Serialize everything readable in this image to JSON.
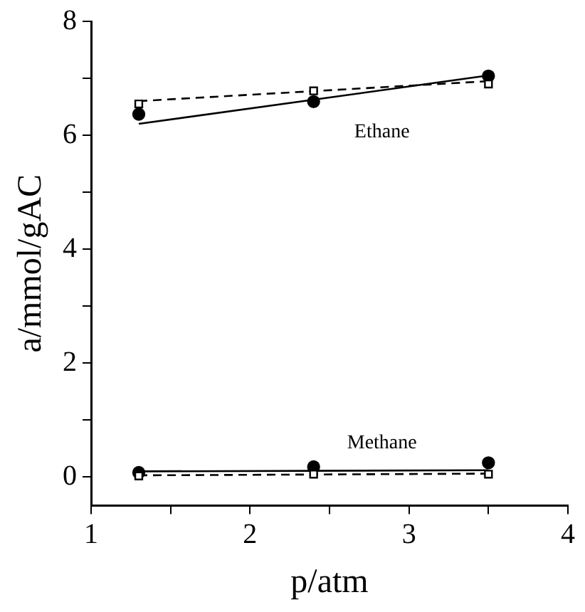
{
  "chart_data": {
    "type": "scatter",
    "xlabel": "p/atm",
    "ylabel": "a/mmol/gAC",
    "xlim": [
      1,
      4
    ],
    "xticks": [
      1,
      {
        "value": 1.5,
        "label": null
      },
      2,
      {
        "value": 2.5,
        "label": null
      },
      3,
      {
        "value": 3.5,
        "label": null
      },
      4
    ],
    "ylim": [
      -0.5,
      8
    ],
    "yticks": [
      0,
      {
        "value": 1,
        "label": null
      },
      2,
      {
        "value": 3,
        "label": null
      },
      4,
      {
        "value": 5,
        "label": null
      },
      6,
      {
        "value": 7,
        "label": null
      },
      8
    ],
    "grid": false,
    "legend": false,
    "annotations": [
      "Ethane",
      "Methane"
    ],
    "series": [
      {
        "type": "scatter",
        "marker": "circle",
        "color": "#000000",
        "x": [
          1.3,
          2.4,
          3.5
        ],
        "values": [
          6.37,
          6.59,
          7.04
        ]
      },
      {
        "type": "scatter",
        "marker": "square",
        "color": "#000000",
        "x": [
          1.3,
          2.4,
          3.5
        ],
        "values": [
          6.55,
          6.78,
          6.9
        ]
      },
      {
        "type": "line",
        "marker": "none",
        "line_style": "solid",
        "color": "#000000",
        "x": [
          1.3,
          3.5
        ],
        "values": [
          6.2,
          7.05
        ]
      },
      {
        "type": "line",
        "marker": "none",
        "line_style": "dashed",
        "color": "#000000",
        "x": [
          1.3,
          3.5
        ],
        "values": [
          6.6,
          6.95
        ]
      },
      {
        "type": "scatter",
        "marker": "circle",
        "color": "#000000",
        "x": [
          1.3,
          2.4,
          3.5
        ],
        "values": [
          0.08,
          0.18,
          0.25
        ]
      },
      {
        "type": "scatter",
        "marker": "square",
        "color": "#000000",
        "x": [
          1.3,
          2.4,
          3.5
        ],
        "values": [
          0.02,
          0.05,
          0.05
        ]
      },
      {
        "type": "line",
        "marker": "none",
        "line_style": "solid",
        "color": "#000000",
        "x": [
          1.3,
          3.5
        ],
        "values": [
          0.1,
          0.12
        ]
      },
      {
        "type": "line",
        "marker": "none",
        "line_style": "dashed",
        "color": "#000000",
        "x": [
          1.3,
          3.5
        ],
        "values": [
          0.03,
          0.06
        ]
      }
    ]
  }
}
